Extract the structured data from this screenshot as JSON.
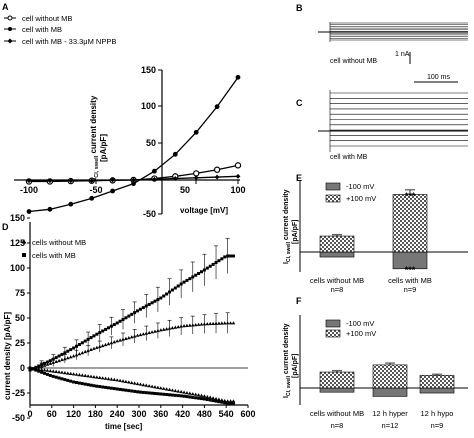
{
  "panels": {
    "A": {
      "letter": "A",
      "legend": [
        "cell without MB",
        "cell with MB",
        "cell with MB - 33.3μM NPPB"
      ],
      "ylabel_main": "I",
      "ylabel_sub": "Cl, swell",
      "ylabel_rest": " current density",
      "ylabel_unit": "[pA/pF]",
      "xlabel": "voltage [mV]",
      "xticks": [
        "-100",
        "-50",
        "50",
        "100"
      ],
      "yticks": [
        "150",
        "100",
        "50",
        "-50"
      ]
    },
    "B": {
      "letter": "B",
      "trace_label": "cell without MB",
      "scale_label": "1 nA"
    },
    "C": {
      "letter": "C",
      "trace_label": "cell with MB",
      "scale_label": "100 ms"
    },
    "D": {
      "letter": "D",
      "legend": [
        "cells without MB",
        "cells with MB"
      ],
      "ylabel": "current density [pA/pF]",
      "xlabel": "time [sec]",
      "xticks": [
        "0",
        "60",
        "120",
        "180",
        "240",
        "300",
        "360",
        "420",
        "480",
        "540",
        "600"
      ],
      "yticks": [
        "150",
        "125",
        "100",
        "75",
        "50",
        "25",
        "0",
        "-25",
        "-50"
      ]
    },
    "E": {
      "letter": "E",
      "legend": [
        "-100 mV",
        "+100 mV"
      ],
      "ylabel_main": "I",
      "ylabel_sub": "Cl, swell",
      "ylabel_rest": " current density",
      "ylabel_unit": "[pA/pF]",
      "categories": [
        "cells without MB",
        "cells with MB"
      ],
      "ns": [
        "n=8",
        "n=9"
      ],
      "sig_top": "***",
      "sig_bottom": "***"
    },
    "F": {
      "letter": "F",
      "legend": [
        "-100 mV",
        "+100 mV"
      ],
      "ylabel_main": "I",
      "ylabel_sub": "Cl, swell",
      "ylabel_rest": " current density",
      "ylabel_unit": "[pA/pF]",
      "categories": [
        "cells without MB",
        "12 h hyper",
        "12 h hypo"
      ],
      "ns": [
        "n=8",
        "n=12",
        "n=9"
      ]
    }
  },
  "chart_data": [
    {
      "panel": "A",
      "type": "line",
      "xlabel": "voltage [mV]",
      "ylabel": "ICl, swell current density [pA/pF]",
      "xlim": [
        -110,
        105
      ],
      "ylim": [
        -50,
        150
      ],
      "series": [
        {
          "name": "cell without MB",
          "x": [
            -100,
            -80,
            -60,
            -40,
            -20,
            0,
            20,
            40,
            60,
            80,
            100
          ],
          "y": [
            -2,
            -2,
            -1.5,
            -1,
            -0.5,
            0,
            2,
            5,
            9,
            14,
            20
          ]
        },
        {
          "name": "cell with MB",
          "x": [
            -100,
            -80,
            -60,
            -40,
            -20,
            0,
            20,
            40,
            60,
            80,
            100
          ],
          "y": [
            -43,
            -40,
            -33,
            -25,
            -15,
            -5,
            12,
            35,
            65,
            100,
            140
          ]
        },
        {
          "name": "cell with MB - 33.3μM NPPB",
          "x": [
            -100,
            -80,
            -60,
            -40,
            -20,
            0,
            20,
            40,
            60,
            80,
            100
          ],
          "y": [
            -1,
            -1,
            -1,
            -1,
            0,
            0,
            1,
            2,
            3,
            4,
            5
          ]
        }
      ]
    },
    {
      "panel": "D",
      "type": "scatter",
      "xlabel": "time [sec]",
      "ylabel": "current density [pA/pF]",
      "xlim": [
        0,
        600
      ],
      "ylim": [
        -50,
        150
      ],
      "series": [
        {
          "name": "cells without MB",
          "x": [
            0,
            60,
            120,
            180,
            240,
            300,
            360,
            420,
            480,
            540
          ],
          "y": [
            -2,
            5,
            12,
            20,
            27,
            33,
            38,
            42,
            44,
            45
          ],
          "neg": [
            0,
            -3,
            -6,
            -9,
            -12,
            -16,
            -20,
            -24,
            -28,
            -33
          ]
        },
        {
          "name": "cells with MB",
          "x": [
            0,
            60,
            120,
            180,
            240,
            300,
            360,
            420,
            480,
            540
          ],
          "y": [
            -2,
            8,
            20,
            33,
            45,
            58,
            70,
            85,
            98,
            112
          ],
          "neg": [
            0,
            -8,
            -14,
            -18,
            -21,
            -24,
            -26,
            -28,
            -31,
            -35
          ]
        }
      ]
    },
    {
      "panel": "E",
      "type": "bar",
      "categories": [
        "cells without MB",
        "cells with MB"
      ],
      "ylabel": "ICl, swell current density [pA/pF]",
      "series": [
        {
          "name": "-100 mV",
          "values": [
            -12,
            -40
          ]
        },
        {
          "name": "+100 mV",
          "values": [
            38,
            137
          ]
        }
      ]
    },
    {
      "panel": "F",
      "type": "bar",
      "categories": [
        "cells without MB",
        "12 h hyper",
        "12 h hypo"
      ],
      "ylabel": "ICl, swell current density [pA/pF]",
      "series": [
        {
          "name": "-100 mV",
          "values": [
            -10,
            -20,
            -12
          ]
        },
        {
          "name": "+100 mV",
          "values": [
            38,
            55,
            30
          ]
        }
      ]
    }
  ]
}
